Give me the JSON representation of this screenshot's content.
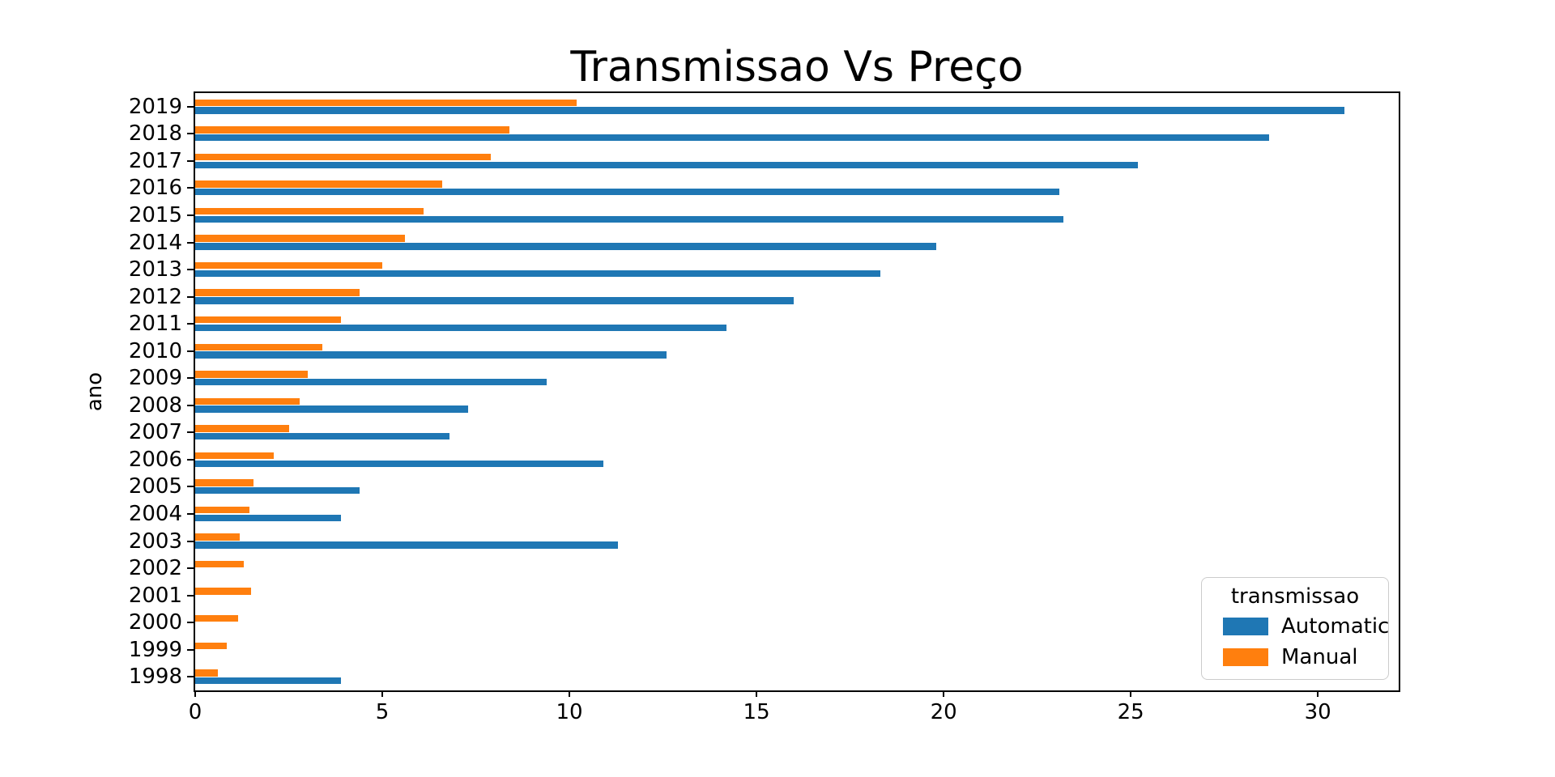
{
  "chart_data": {
    "type": "bar",
    "orientation": "horizontal",
    "title": "Transmissao Vs Preço",
    "xlabel": "",
    "ylabel": "ano",
    "grid": false,
    "xlim": [
      0,
      32.16
    ],
    "xticks": [
      0,
      5,
      10,
      15,
      20,
      25,
      30
    ],
    "categories": [
      "2019",
      "2018",
      "2017",
      "2016",
      "2015",
      "2014",
      "2013",
      "2012",
      "2011",
      "2010",
      "2009",
      "2008",
      "2007",
      "2006",
      "2005",
      "2004",
      "2003",
      "2002",
      "2001",
      "2000",
      "1999",
      "1998"
    ],
    "series": [
      {
        "name": "Automatic",
        "color": "#1f77b4",
        "values": [
          30.7,
          28.7,
          25.2,
          23.1,
          23.2,
          19.8,
          18.3,
          16.0,
          14.2,
          12.6,
          9.4,
          7.3,
          6.8,
          10.9,
          4.4,
          3.9,
          11.3,
          null,
          null,
          null,
          null,
          3.9
        ]
      },
      {
        "name": "Manual",
        "color": "#ff7f0e",
        "values": [
          10.2,
          8.4,
          7.9,
          6.6,
          6.1,
          5.6,
          5.0,
          4.4,
          3.9,
          3.4,
          3.0,
          2.8,
          2.5,
          2.1,
          1.55,
          1.45,
          1.2,
          1.3,
          1.5,
          1.15,
          0.85,
          0.6
        ]
      }
    ],
    "legend": {
      "title": "transmissao",
      "position": "lower right"
    }
  }
}
